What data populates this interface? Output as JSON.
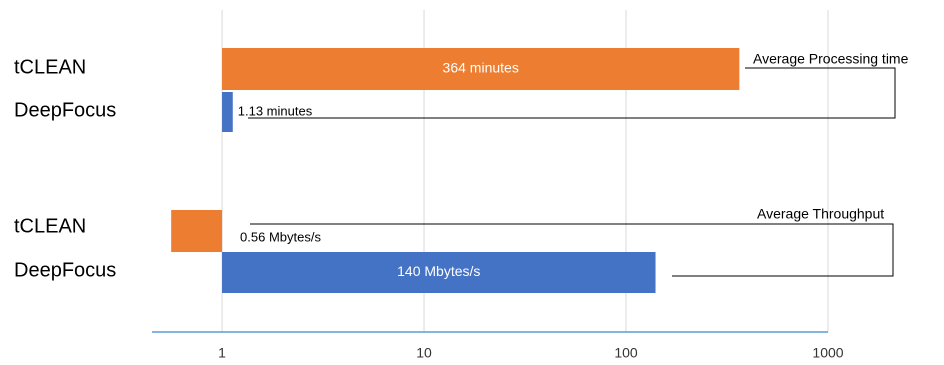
{
  "chart_data": {
    "type": "bar",
    "orientation": "horizontal",
    "log_scale": true,
    "grid": true,
    "categories": [
      "tCLEAN",
      "DeepFocus",
      "tCLEAN",
      "DeepFocus"
    ],
    "values": [
      364,
      1.13,
      0.56,
      140
    ],
    "value_labels": [
      "364  minutes",
      "1.13 minutes",
      "0.56 Mbytes/s",
      "140 Mbytes/s"
    ],
    "colors": [
      "#ED7D31",
      "#4472C4",
      "#ED7D31",
      "#4472C4"
    ],
    "annotations": [
      "Average  Processing time",
      "Average  Throughput"
    ],
    "xlim": [
      0.45,
      1000
    ],
    "xticks": [
      1,
      10,
      100,
      1000
    ]
  }
}
